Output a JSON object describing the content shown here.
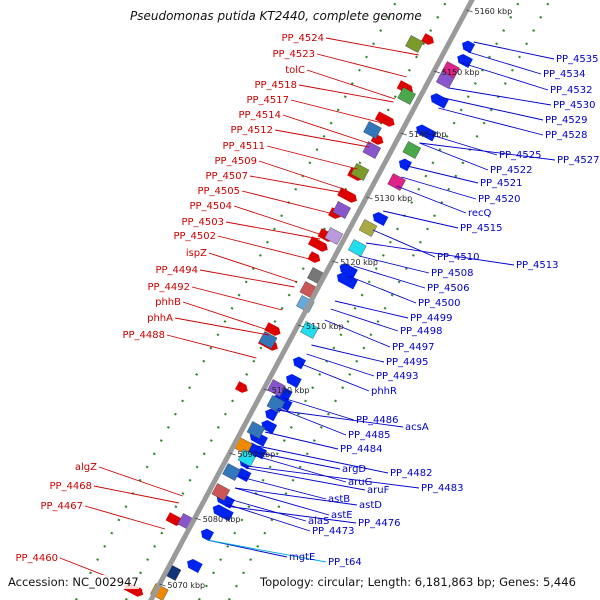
{
  "title": "Pseudomonas putida KT2440, complete genome",
  "footer": {
    "accession": "Accession: NC_002947",
    "topology": "Topology: circular; Length: 6,181,863 bp; Genes: 5,446"
  },
  "colors": {
    "backbone": "#9a9a9a",
    "ruler_ticks": "#2a8a2a",
    "forward_genes": "#dd0000",
    "reverse_genes": "#0022ee",
    "left_labels": "#cc0000",
    "right_labels": "#0000cc",
    "trna_label": "#00aadd"
  },
  "kbp_markers": [
    "5160 kbp",
    "5150 kbp",
    "5140 kbp",
    "5130 kbp",
    "5120 kbp",
    "5110 kbp",
    "5100 kbp",
    "5090 kbp",
    "5080 kbp",
    "5070 kbp"
  ],
  "left_labels": [
    "PP_4524",
    "PP_4523",
    "tolC",
    "PP_4518",
    "PP_4517",
    "PP_4514",
    "PP_4512",
    "PP_4511",
    "PP_4509",
    "PP_4507",
    "PP_4505",
    "PP_4504",
    "PP_4503",
    "PP_4502",
    "ispZ",
    "PP_4494",
    "PP_4492",
    "phhB",
    "phhA",
    "PP_4488",
    "algZ",
    "PP_4468",
    "PP_4467",
    "PP_4460"
  ],
  "right_labels": [
    "PP_4535",
    "PP_4534",
    "PP_4532",
    "PP_4530",
    "PP_4529",
    "PP_4528",
    "PP_4527",
    "PP_4525",
    "PP_4522",
    "PP_4521",
    "PP_4520",
    "recQ",
    "PP_4515",
    "PP_4513",
    "PP_4510",
    "PP_4508",
    "PP_4506",
    "PP_4500",
    "PP_4499",
    "PP_4498",
    "PP_4497",
    "PP_4495",
    "PP_4493",
    "phhR",
    "acsA",
    "PP_4486",
    "PP_4485",
    "PP_4484",
    "PP_4483",
    "PP_4482",
    "argD",
    "aruF",
    "aruG",
    "astD",
    "astB",
    "astE",
    "PP_4476",
    "alaS",
    "PP_4473",
    "mgtE",
    "PP_t64"
  ]
}
